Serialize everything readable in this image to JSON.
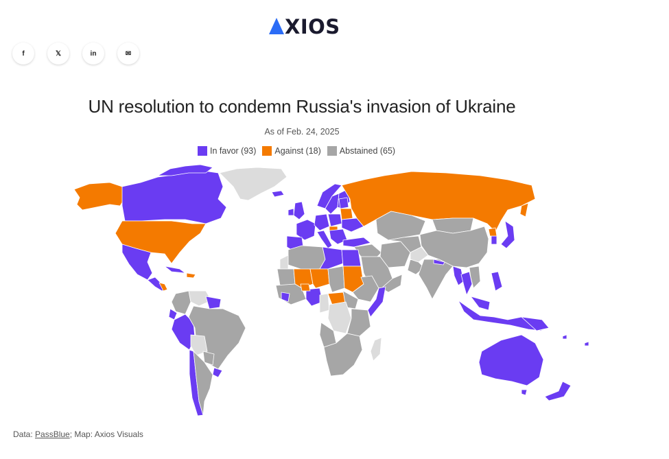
{
  "brand": {
    "name": "XIOS",
    "mark_color": "#2b6cf6"
  },
  "share_buttons": [
    {
      "name": "facebook-icon",
      "glyph": "f"
    },
    {
      "name": "x-icon",
      "glyph": "𝕏"
    },
    {
      "name": "linkedin-icon",
      "glyph": "in"
    },
    {
      "name": "email-icon",
      "glyph": "✉"
    }
  ],
  "title": "UN resolution to condemn Russia's invasion of Ukraine",
  "subtitle": "As of Feb. 24, 2025",
  "legend": [
    {
      "label": "In favor (93)",
      "color": "#6a3cf2"
    },
    {
      "label": "Against (18)",
      "color": "#f47a00"
    },
    {
      "label": "Abstained (65)",
      "color": "#a6a6a6"
    }
  ],
  "colors": {
    "in_favor": "#6a3cf2",
    "against": "#f47a00",
    "abstained": "#a6a6a6",
    "no_data": "#dcdcdc",
    "border": "#ffffff"
  },
  "source": {
    "prefix": "Data: ",
    "link_text": "PassBlue",
    "suffix": "; Map: Axios Visuals"
  }
}
